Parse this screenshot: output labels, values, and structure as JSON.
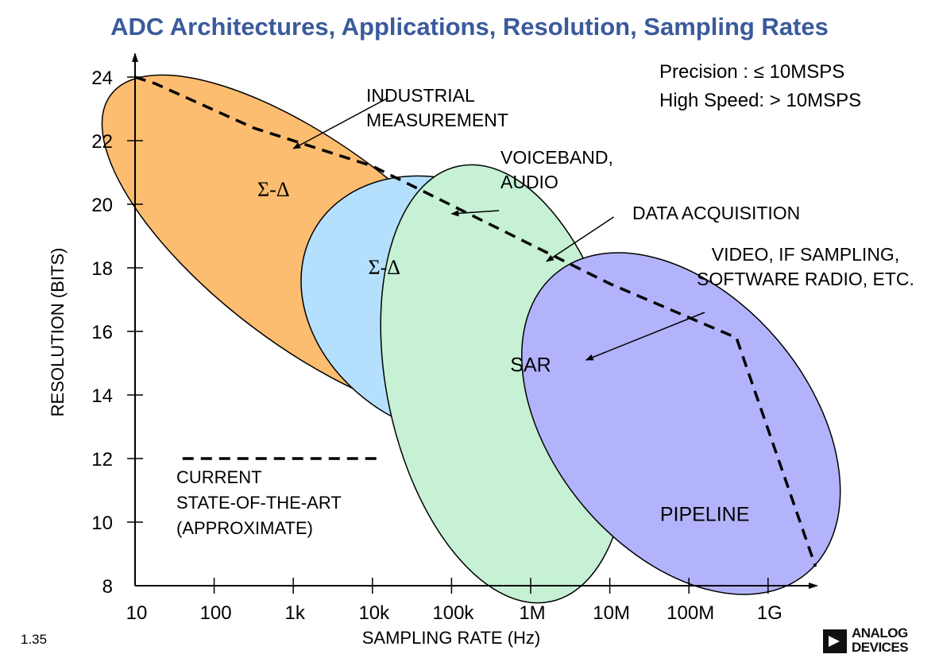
{
  "chart_data": {
    "type": "diagram-region-chart",
    "title": "ADC Architectures, Applications, Resolution, Sampling Rates",
    "xlabel": "SAMPLING RATE (Hz)",
    "ylabel": "RESOLUTION (BITS)",
    "x_scale": "log10",
    "xlim_log10": [
      1,
      9.6
    ],
    "ylim": [
      8,
      24.7
    ],
    "x_ticks": [
      {
        "value_log10": 1,
        "label": "10"
      },
      {
        "value_log10": 2,
        "label": "100"
      },
      {
        "value_log10": 3,
        "label": "1k"
      },
      {
        "value_log10": 4,
        "label": "10k"
      },
      {
        "value_log10": 5,
        "label": "100k"
      },
      {
        "value_log10": 6,
        "label": "1M"
      },
      {
        "value_log10": 7,
        "label": "10M"
      },
      {
        "value_log10": 8,
        "label": "100M"
      },
      {
        "value_log10": 9,
        "label": "1G"
      }
    ],
    "y_ticks": [
      {
        "value": 8,
        "label": "8"
      },
      {
        "value": 10,
        "label": "10"
      },
      {
        "value": 12,
        "label": "12"
      },
      {
        "value": 14,
        "label": "14"
      },
      {
        "value": 16,
        "label": "16"
      },
      {
        "value": 18,
        "label": "18"
      },
      {
        "value": 20,
        "label": "20"
      },
      {
        "value": 22,
        "label": "22"
      },
      {
        "value": 24,
        "label": "24"
      }
    ],
    "regions": [
      {
        "name": "sigma-delta-low",
        "label": "Σ-Δ",
        "center_log10": 3.25,
        "center_bits": 18.65,
        "rx_decades": 3.2,
        "ry_bits": 3.15,
        "rotation_deg": 37,
        "color": "#FDBD70",
        "label_at": [
          2.75,
          20.4
        ],
        "label_style": "serif"
      },
      {
        "name": "sigma-delta-audio",
        "label": "Σ-Δ",
        "center_log10": 4.95,
        "center_bits": 16.75,
        "rx_decades": 1.95,
        "ry_bits": 3.85,
        "rotation_deg": 31,
        "color": "#B5E0FD",
        "label_at": [
          4.15,
          17.95
        ],
        "label_style": "serif"
      },
      {
        "name": "sar",
        "label": "SAR",
        "center_log10": 5.67,
        "center_bits": 14.35,
        "rx_decades": 1.485,
        "ry_bits": 7.0,
        "rotation_deg": -12,
        "color": "#C6F1D4",
        "label_at": [
          6.0,
          14.9
        ],
        "label_style": "sans"
      },
      {
        "name": "pipeline",
        "label": "PIPELINE",
        "center_log10": 7.9,
        "center_bits": 13.1,
        "rx_decades": 2.47,
        "ry_bits": 4.02,
        "rotation_deg": 50,
        "color": "#B3B3FB",
        "label_at": [
          8.2,
          10.2
        ],
        "label_style": "sans"
      }
    ],
    "state_of_the_art_line": {
      "points": [
        [
          1.0,
          24.0
        ],
        [
          1.25,
          23.8
        ],
        [
          2.5,
          22.4
        ],
        [
          4.0,
          21.2
        ],
        [
          7.0,
          17.5
        ],
        [
          8.6,
          15.8
        ],
        [
          9.6,
          8.6
        ]
      ],
      "style": "dashed"
    },
    "legend": {
      "line_from_log10": 1.6,
      "line_to_log10": 4.1,
      "line_bits": 12,
      "lines": [
        "CURRENT",
        "STATE-OF-THE-ART",
        "(APPROXIMATE)"
      ]
    },
    "annotations": [
      {
        "lines": [
          "INDUSTRIAL",
          "MEASUREMENT"
        ],
        "arrow_from": [
          4.2,
          23.35
        ],
        "arrow_to": [
          3.0,
          21.75
        ]
      },
      {
        "lines": [
          "VOICEBAND,",
          "AUDIO"
        ],
        "arrow_from": [
          5.6,
          19.8
        ],
        "arrow_to": [
          5.0,
          19.7
        ]
      },
      {
        "lines": [
          "DATA ACQUISITION"
        ],
        "arrow_from": [
          7.05,
          19.6
        ],
        "arrow_to": [
          6.2,
          18.2
        ]
      },
      {
        "lines": [
          "VIDEO, IF SAMPLING,",
          "SOFTWARE RADIO, ETC."
        ],
        "arrow_from": [
          8.2,
          16.6
        ],
        "arrow_to": [
          6.7,
          15.1
        ]
      }
    ],
    "notes": [
      "Precision : ≤ 10MSPS",
      "High Speed: > 10MSPS"
    ]
  },
  "footer": {
    "slide_number": "1.35",
    "logo_line1": "ANALOG",
    "logo_line2": "DEVICES"
  }
}
